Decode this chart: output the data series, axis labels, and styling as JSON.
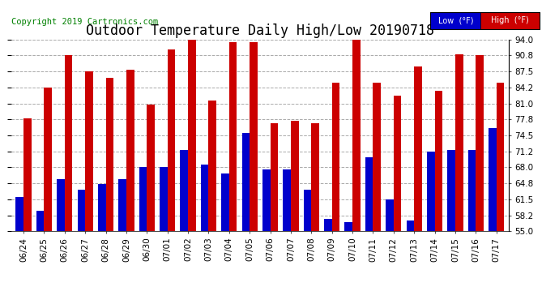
{
  "title": "Outdoor Temperature Daily High/Low 20190718",
  "copyright": "Copyright 2019 Cartronics.com",
  "legend_low": "Low  (°F)",
  "legend_high": "High  (°F)",
  "dates": [
    "06/24",
    "06/25",
    "06/26",
    "06/27",
    "06/28",
    "06/29",
    "06/30",
    "07/01",
    "07/02",
    "07/03",
    "07/04",
    "07/05",
    "07/06",
    "07/07",
    "07/08",
    "07/09",
    "07/10",
    "07/11",
    "07/12",
    "07/13",
    "07/14",
    "07/15",
    "07/16",
    "07/17"
  ],
  "highs": [
    78.0,
    84.2,
    90.8,
    87.5,
    86.2,
    87.8,
    80.8,
    92.0,
    94.0,
    81.5,
    93.5,
    93.5,
    77.0,
    77.5,
    77.0,
    85.2,
    94.0,
    85.2,
    82.5,
    88.5,
    83.5,
    91.0,
    90.8,
    85.2
  ],
  "lows": [
    62.0,
    59.2,
    65.5,
    63.5,
    64.5,
    65.5,
    68.0,
    68.0,
    71.5,
    68.5,
    66.8,
    75.0,
    67.5,
    67.5,
    63.5,
    57.5,
    56.8,
    70.0,
    61.5,
    57.2,
    71.2,
    71.5,
    71.5,
    76.0
  ],
  "ylim": [
    55.0,
    94.0
  ],
  "yticks": [
    55.0,
    58.2,
    61.5,
    64.8,
    68.0,
    71.2,
    74.5,
    77.8,
    81.0,
    84.2,
    87.5,
    90.8,
    94.0
  ],
  "bar_width": 0.38,
  "low_color": "#0000cc",
  "high_color": "#cc0000",
  "background_color": "#ffffff",
  "grid_color": "#aaaaaa",
  "title_fontsize": 12,
  "tick_fontsize": 7.5,
  "copyright_fontsize": 7.5
}
